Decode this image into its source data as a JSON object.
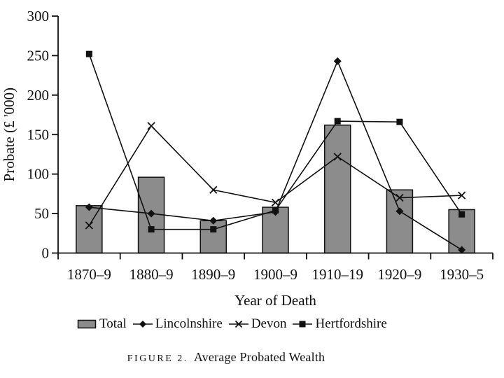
{
  "figure": {
    "caption_label": "FIGURE 2.",
    "caption_title": "Average Probated Wealth"
  },
  "chart_data": {
    "type": "bar",
    "title": "Average Probated Wealth",
    "xlabel": "Year of Death",
    "ylabel": "Probate (£ '000)",
    "ylim": [
      0,
      300
    ],
    "yticks": [
      0,
      50,
      100,
      150,
      200,
      250,
      300
    ],
    "grid": false,
    "legend_position": "bottom",
    "categories": [
      "1870–9",
      "1880–9",
      "1890–9",
      "1900–9",
      "1910–19",
      "1920–9",
      "1930–5"
    ],
    "series": [
      {
        "name": "Total",
        "type": "bar",
        "marker": "bar-swatch",
        "values": [
          60,
          96,
          41,
          58,
          162,
          80,
          55
        ]
      },
      {
        "name": "Lincolnshire",
        "type": "line",
        "marker": "diamond",
        "values": [
          58,
          50,
          41,
          52,
          243,
          53,
          4
        ]
      },
      {
        "name": "Devon",
        "type": "line",
        "marker": "x",
        "values": [
          35,
          161,
          80,
          64,
          122,
          70,
          73
        ]
      },
      {
        "name": "Hertfordshire",
        "type": "line",
        "marker": "square",
        "values": [
          252,
          30,
          30,
          54,
          167,
          166,
          49
        ]
      }
    ],
    "colors": {
      "bar_fill": "#8c8c8c",
      "line": "#111111",
      "axis": "#111111",
      "background": "#ffffff"
    }
  }
}
